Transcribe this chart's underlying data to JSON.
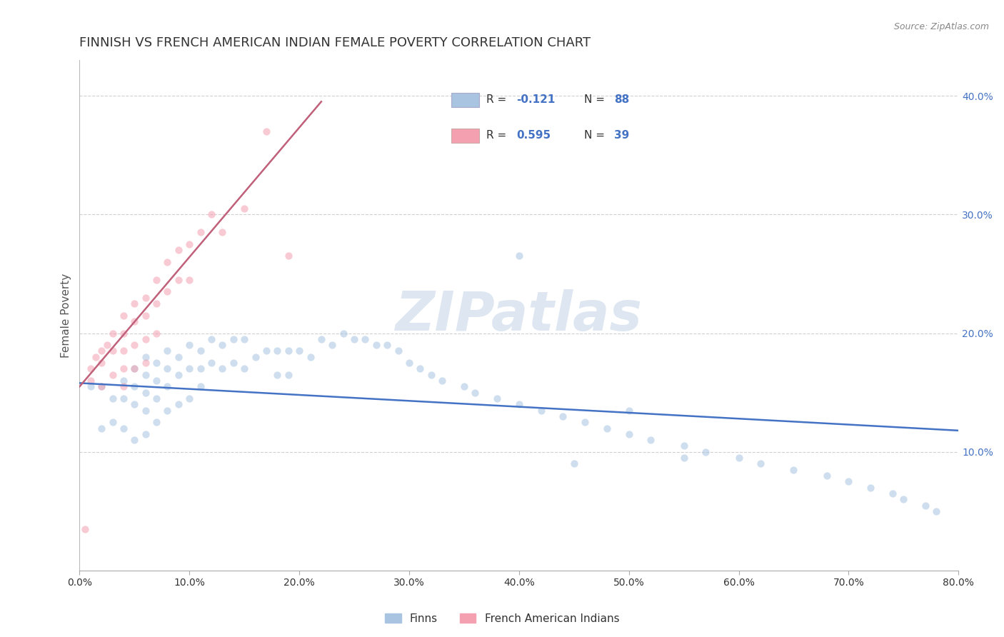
{
  "title": "FINNISH VS FRENCH AMERICAN INDIAN FEMALE POVERTY CORRELATION CHART",
  "source": "Source: ZipAtlas.com",
  "ylabel": "Female Poverty",
  "xlim": [
    0.0,
    0.8
  ],
  "ylim": [
    0.0,
    0.43
  ],
  "xticks": [
    0.0,
    0.1,
    0.2,
    0.3,
    0.4,
    0.5,
    0.6,
    0.7,
    0.8
  ],
  "xticklabels": [
    "0.0%",
    "10.0%",
    "20.0%",
    "30.0%",
    "40.0%",
    "50.0%",
    "60.0%",
    "70.0%",
    "80.0%"
  ],
  "yticks_right": [
    0.1,
    0.2,
    0.3,
    0.4
  ],
  "ytick_right_labels": [
    "10.0%",
    "20.0%",
    "30.0%",
    "40.0%"
  ],
  "color_finn": "#a8c4e0",
  "color_french": "#f4a0b0",
  "color_finn_line": "#4472c4",
  "color_french_line": "#c0607a",
  "watermark": "ZIPatlas",
  "title_fontsize": 13,
  "axis_fontsize": 11,
  "tick_fontsize": 10,
  "finn_scatter_x": [
    0.01,
    0.02,
    0.02,
    0.03,
    0.03,
    0.04,
    0.04,
    0.04,
    0.05,
    0.05,
    0.05,
    0.05,
    0.06,
    0.06,
    0.06,
    0.06,
    0.06,
    0.07,
    0.07,
    0.07,
    0.07,
    0.08,
    0.08,
    0.08,
    0.08,
    0.09,
    0.09,
    0.09,
    0.1,
    0.1,
    0.1,
    0.11,
    0.11,
    0.11,
    0.12,
    0.12,
    0.13,
    0.13,
    0.14,
    0.14,
    0.15,
    0.15,
    0.16,
    0.17,
    0.18,
    0.18,
    0.19,
    0.19,
    0.2,
    0.21,
    0.22,
    0.23,
    0.24,
    0.25,
    0.26,
    0.27,
    0.28,
    0.29,
    0.3,
    0.31,
    0.32,
    0.33,
    0.35,
    0.36,
    0.38,
    0.4,
    0.42,
    0.44,
    0.46,
    0.48,
    0.5,
    0.52,
    0.55,
    0.57,
    0.6,
    0.62,
    0.65,
    0.68,
    0.7,
    0.72,
    0.74,
    0.75,
    0.77,
    0.78,
    0.4,
    0.45,
    0.5,
    0.55
  ],
  "finn_scatter_y": [
    0.155,
    0.155,
    0.12,
    0.145,
    0.125,
    0.16,
    0.145,
    0.12,
    0.17,
    0.155,
    0.14,
    0.11,
    0.18,
    0.165,
    0.15,
    0.135,
    0.115,
    0.175,
    0.16,
    0.145,
    0.125,
    0.185,
    0.17,
    0.155,
    0.135,
    0.18,
    0.165,
    0.14,
    0.19,
    0.17,
    0.145,
    0.185,
    0.17,
    0.155,
    0.195,
    0.175,
    0.19,
    0.17,
    0.195,
    0.175,
    0.195,
    0.17,
    0.18,
    0.185,
    0.185,
    0.165,
    0.185,
    0.165,
    0.185,
    0.18,
    0.195,
    0.19,
    0.2,
    0.195,
    0.195,
    0.19,
    0.19,
    0.185,
    0.175,
    0.17,
    0.165,
    0.16,
    0.155,
    0.15,
    0.145,
    0.14,
    0.135,
    0.13,
    0.125,
    0.12,
    0.115,
    0.11,
    0.105,
    0.1,
    0.095,
    0.09,
    0.085,
    0.08,
    0.075,
    0.07,
    0.065,
    0.06,
    0.055,
    0.05,
    0.265,
    0.09,
    0.135,
    0.095
  ],
  "french_scatter_x": [
    0.005,
    0.01,
    0.01,
    0.015,
    0.02,
    0.02,
    0.02,
    0.025,
    0.03,
    0.03,
    0.03,
    0.04,
    0.04,
    0.04,
    0.04,
    0.04,
    0.05,
    0.05,
    0.05,
    0.05,
    0.06,
    0.06,
    0.06,
    0.06,
    0.07,
    0.07,
    0.07,
    0.08,
    0.08,
    0.09,
    0.09,
    0.1,
    0.1,
    0.11,
    0.12,
    0.13,
    0.15,
    0.17,
    0.19
  ],
  "french_scatter_y": [
    0.035,
    0.17,
    0.16,
    0.18,
    0.185,
    0.175,
    0.155,
    0.19,
    0.2,
    0.185,
    0.165,
    0.215,
    0.2,
    0.185,
    0.17,
    0.155,
    0.225,
    0.21,
    0.19,
    0.17,
    0.23,
    0.215,
    0.195,
    0.175,
    0.245,
    0.225,
    0.2,
    0.26,
    0.235,
    0.27,
    0.245,
    0.275,
    0.245,
    0.285,
    0.3,
    0.285,
    0.305,
    0.37,
    0.265
  ],
  "finn_line_x": [
    0.0,
    0.8
  ],
  "finn_line_y": [
    0.158,
    0.118
  ],
  "french_line_x": [
    0.0,
    0.22
  ],
  "french_line_y": [
    0.155,
    0.395
  ],
  "background_color": "#ffffff",
  "grid_color": "#d0d0d0",
  "watermark_color": "#c8d8e8",
  "watermark_fontsize": 55,
  "scatter_size": 55,
  "scatter_alpha": 0.55,
  "legend_items": [
    "Finns",
    "French American Indians"
  ]
}
